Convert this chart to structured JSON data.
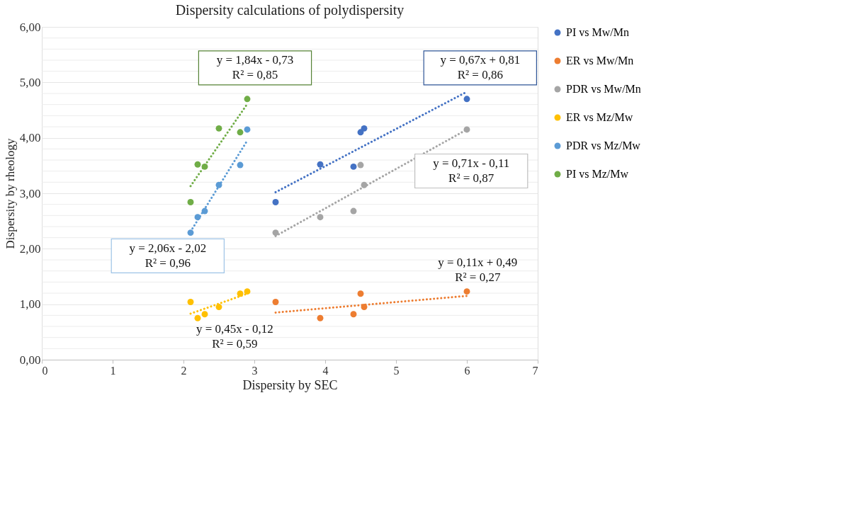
{
  "chart_data": {
    "type": "scatter",
    "title": "Dispersity calculations of polydispersity",
    "xlabel": "Dispersity  by SEC",
    "ylabel": "Dispersity  by rheology",
    "xlim": [
      0,
      7
    ],
    "xticks": [
      0,
      1,
      2,
      3,
      4,
      5,
      6,
      7
    ],
    "ylim": [
      0,
      6
    ],
    "yticks": [
      {
        "value": 0,
        "label": "0,00"
      },
      {
        "value": 1,
        "label": "1,00"
      },
      {
        "value": 2,
        "label": "2,00"
      },
      {
        "value": 3,
        "label": "3,00"
      },
      {
        "value": 4,
        "label": "4,00"
      },
      {
        "value": 5,
        "label": "5,00"
      },
      {
        "value": 6,
        "label": "6,00"
      }
    ],
    "grid": "y",
    "legend": "right",
    "marker": "circle",
    "series": [
      {
        "name": "PI vs Mw/Mn",
        "color": "#4472c4",
        "x": [
          3.3,
          3.93,
          4.4,
          4.5,
          4.55,
          6.0
        ],
        "values": [
          2.84,
          3.52,
          3.48,
          4.1,
          4.17,
          4.7
        ]
      },
      {
        "name": "ER vs Mw/Mn",
        "color": "#ed7d31",
        "x": [
          3.3,
          3.93,
          4.4,
          4.5,
          4.55,
          6.0
        ],
        "values": [
          1.04,
          0.75,
          0.82,
          1.19,
          0.95,
          1.23
        ]
      },
      {
        "name": "PDR vs Mw/Mn",
        "color": "#a5a5a5",
        "x": [
          3.3,
          3.93,
          4.4,
          4.5,
          4.55,
          6.0
        ],
        "values": [
          2.29,
          2.57,
          2.68,
          3.51,
          3.15,
          4.15
        ]
      },
      {
        "name": "ER vs Mz/Mw",
        "color": "#ffc000",
        "x": [
          2.1,
          2.2,
          2.3,
          2.5,
          2.8,
          2.9
        ],
        "values": [
          1.04,
          0.75,
          0.82,
          0.95,
          1.19,
          1.23
        ]
      },
      {
        "name": "PDR vs Mz/Mw",
        "color": "#5b9bd5",
        "x": [
          2.1,
          2.2,
          2.3,
          2.5,
          2.8,
          2.9
        ],
        "values": [
          2.29,
          2.57,
          2.68,
          3.15,
          3.51,
          4.15
        ]
      },
      {
        "name": "PI vs Mz/Mw",
        "color": "#70ad47",
        "x": [
          2.1,
          2.2,
          2.3,
          2.5,
          2.8,
          2.9
        ],
        "values": [
          2.84,
          3.52,
          3.48,
          4.17,
          4.1,
          4.7
        ]
      },
      {
        "type": "line",
        "line_style": "dotted",
        "marker": "none",
        "color": "#4472c4",
        "x": [
          3.3,
          6.0
        ],
        "values": [
          3.02,
          4.83
        ]
      },
      {
        "type": "line",
        "line_style": "dotted",
        "marker": "none",
        "color": "#ed7d31",
        "x": [
          3.3,
          6.0
        ],
        "values": [
          0.85,
          1.15
        ]
      },
      {
        "type": "line",
        "line_style": "dotted",
        "marker": "none",
        "color": "#a5a5a5",
        "x": [
          3.3,
          6.0
        ],
        "values": [
          2.23,
          4.15
        ]
      },
      {
        "type": "line",
        "line_style": "dotted",
        "marker": "none",
        "color": "#ffc000",
        "x": [
          2.1,
          2.9
        ],
        "values": [
          0.83,
          1.19
        ]
      },
      {
        "type": "line",
        "line_style": "dotted",
        "marker": "none",
        "color": "#5b9bd5",
        "x": [
          2.1,
          2.9
        ],
        "values": [
          2.31,
          3.95
        ]
      },
      {
        "type": "line",
        "line_style": "dotted",
        "marker": "none",
        "color": "#70ad47",
        "x": [
          2.1,
          2.9
        ],
        "values": [
          3.13,
          4.61
        ]
      }
    ],
    "annotations": [
      "y = 0,67x + 0,81\nR² = 0,86",
      "y = 0,11x + 0,49\nR² = 0,27",
      "y = 0,71x - 0,11\nR² = 0,87",
      "y = 0,45x - 0,12\nR² = 0,59",
      "y = 2,06x - 2,02\nR² = 0,96",
      "y = 1,84x - 0,73\nR² = 0,85"
    ]
  }
}
